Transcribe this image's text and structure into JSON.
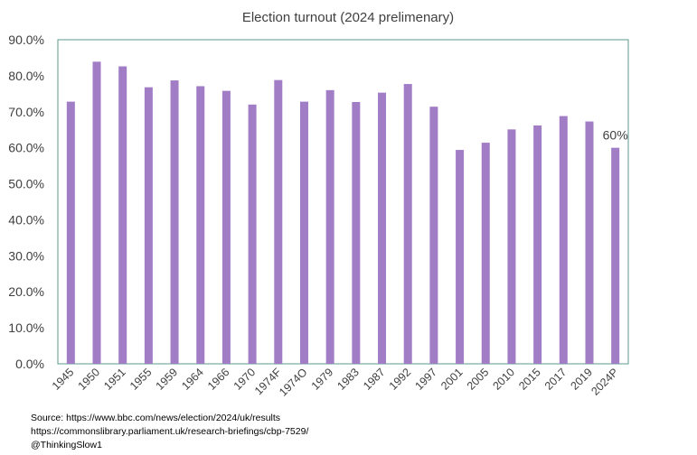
{
  "colors": {
    "bar": "#a17dc6",
    "plot_border": "#5b9a8b",
    "text": "#404040"
  },
  "chart_data": {
    "type": "bar",
    "title": "Election turnout (2024 prelimenary)",
    "xlabel": "",
    "ylabel": "",
    "ylim": [
      0,
      90
    ],
    "yticks": [
      0,
      10,
      20,
      30,
      40,
      50,
      60,
      70,
      80,
      90
    ],
    "ytick_labels": [
      "0.0%",
      "10.0%",
      "20.0%",
      "30.0%",
      "40.0%",
      "50.0%",
      "60.0%",
      "70.0%",
      "80.0%",
      "90.0%"
    ],
    "grid": false,
    "categories": [
      "1945",
      "1950",
      "1951",
      "1955",
      "1959",
      "1964",
      "1966",
      "1970",
      "1974F",
      "1974O",
      "1979",
      "1983",
      "1987",
      "1992",
      "1997",
      "2001",
      "2005",
      "2010",
      "2015",
      "2017",
      "2019",
      "2024P"
    ],
    "values": [
      72.8,
      83.9,
      82.6,
      76.8,
      78.7,
      77.1,
      75.8,
      72.0,
      78.8,
      72.8,
      76.0,
      72.7,
      75.3,
      77.7,
      71.4,
      59.4,
      61.4,
      65.1,
      66.2,
      68.8,
      67.3,
      60.0
    ],
    "data_labels": [
      {
        "category": "2024P",
        "text": "60%"
      }
    ]
  },
  "source": {
    "line1": "Source:  https://www.bbc.com/news/election/2024/uk/results",
    "line2": "https://commonslibrary.parliament.uk/research-briefings/cbp-7529/",
    "line3": "@ThinkingSlow1"
  }
}
